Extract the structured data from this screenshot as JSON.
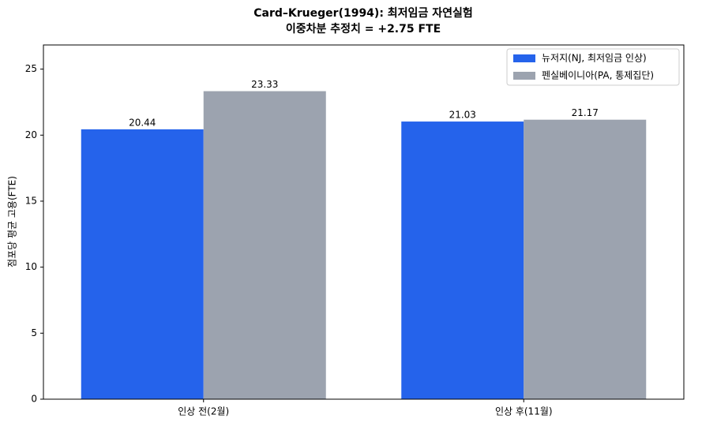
{
  "chart_data": {
    "type": "bar",
    "title": "Card–Krueger(1994): 최저임금 자연실험",
    "subtitle": "이중차분 추정치 = +2.75 FTE",
    "y_label": "점포당 평균 고용(FTE)",
    "categories": [
      "인상 전(2월)",
      "인상 후(11월)"
    ],
    "series": [
      {
        "name": "뉴저지(NJ, 최저임금 인상)",
        "color": "#2563eb",
        "values": [
          20.44,
          21.03
        ]
      },
      {
        "name": "펜실베이니아(PA, 통제집단)",
        "color": "#9ca3af",
        "values": [
          23.33,
          21.17
        ]
      }
    ],
    "ylim": [
      0,
      26.83
    ],
    "yticks": [
      0,
      5,
      10,
      15,
      20,
      25
    ],
    "grid": false,
    "legend": "upper right"
  }
}
